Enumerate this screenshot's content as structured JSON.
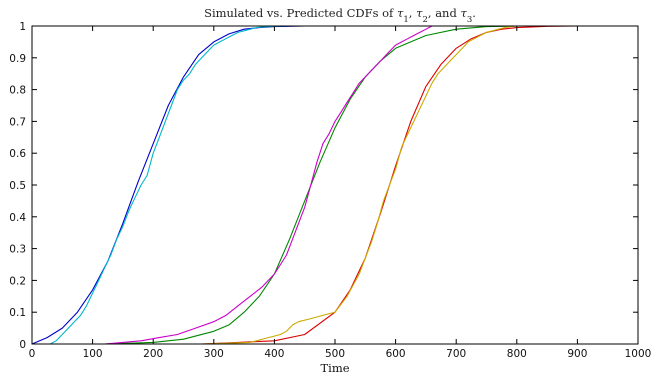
{
  "chart_data": {
    "type": "line",
    "title_parts": [
      {
        "text": "Simulated vs. Predicted CDFs of "
      },
      {
        "text": "τ",
        "italic": true
      },
      {
        "text": "1",
        "sub": true
      },
      {
        "text": ", "
      },
      {
        "text": "τ",
        "italic": true
      },
      {
        "text": "2",
        "sub": true
      },
      {
        "text": ", and "
      },
      {
        "text": "τ",
        "italic": true
      },
      {
        "text": "3",
        "sub": true
      },
      {
        "text": "."
      }
    ],
    "xlabel": "Time",
    "ylabel": "",
    "xlim": [
      0,
      1000
    ],
    "ylim": [
      0,
      1
    ],
    "xticks": [
      "0",
      "100",
      "200",
      "300",
      "400",
      "500",
      "600",
      "700",
      "800",
      "900",
      "1000"
    ],
    "yticks": [
      "0",
      "0.1",
      "0.2",
      "0.3",
      "0.4",
      "0.5",
      "0.6",
      "0.7",
      "0.8",
      "0.9",
      "1"
    ],
    "grid": false,
    "legend": "none",
    "series": [
      {
        "color": "#0000cc",
        "style": "predicted",
        "x": [
          0,
          25,
          50,
          75,
          100,
          125,
          150,
          175,
          200,
          225,
          250,
          275,
          300,
          325,
          350,
          375,
          400,
          450,
          500,
          600,
          1000
        ],
        "y": [
          0,
          0.02,
          0.05,
          0.1,
          0.17,
          0.26,
          0.38,
          0.51,
          0.63,
          0.75,
          0.84,
          0.91,
          0.95,
          0.975,
          0.99,
          0.995,
          0.998,
          1,
          1,
          1,
          1
        ]
      },
      {
        "color": "#00b8cc",
        "style": "simulated",
        "x": [
          30,
          40,
          50,
          60,
          70,
          80,
          90,
          100,
          110,
          120,
          130,
          140,
          150,
          160,
          170,
          180,
          190,
          200,
          210,
          220,
          230,
          240,
          250,
          260,
          270,
          280,
          290,
          300,
          310,
          320,
          330,
          340,
          350,
          360,
          370,
          380,
          400,
          420,
          460
        ],
        "y": [
          0,
          0.01,
          0.03,
          0.05,
          0.07,
          0.09,
          0.12,
          0.16,
          0.2,
          0.24,
          0.28,
          0.33,
          0.37,
          0.42,
          0.46,
          0.5,
          0.53,
          0.6,
          0.65,
          0.7,
          0.75,
          0.8,
          0.83,
          0.85,
          0.88,
          0.9,
          0.92,
          0.94,
          0.95,
          0.96,
          0.97,
          0.98,
          0.985,
          0.99,
          0.995,
          0.997,
          0.999,
          1,
          1
        ]
      },
      {
        "color": "#008800",
        "style": "predicted",
        "x": [
          120,
          200,
          250,
          300,
          325,
          350,
          375,
          400,
          425,
          450,
          475,
          500,
          525,
          550,
          575,
          600,
          650,
          700,
          750,
          800,
          1000
        ],
        "y": [
          0,
          0.005,
          0.015,
          0.04,
          0.06,
          0.1,
          0.15,
          0.22,
          0.33,
          0.45,
          0.57,
          0.68,
          0.77,
          0.84,
          0.89,
          0.93,
          0.97,
          0.99,
          0.998,
          1,
          1
        ]
      },
      {
        "color": "#cc00cc",
        "style": "simulated",
        "x": [
          120,
          150,
          180,
          210,
          240,
          270,
          300,
          320,
          340,
          360,
          380,
          400,
          410,
          420,
          430,
          440,
          450,
          460,
          470,
          480,
          490,
          500,
          510,
          520,
          530,
          540,
          550,
          560,
          570,
          580,
          590,
          600,
          610,
          620,
          630,
          640,
          650,
          660
        ],
        "y": [
          0,
          0.005,
          0.01,
          0.02,
          0.03,
          0.05,
          0.07,
          0.09,
          0.12,
          0.15,
          0.18,
          0.22,
          0.25,
          0.28,
          0.33,
          0.38,
          0.43,
          0.5,
          0.57,
          0.63,
          0.66,
          0.7,
          0.73,
          0.76,
          0.79,
          0.82,
          0.84,
          0.86,
          0.88,
          0.9,
          0.92,
          0.94,
          0.95,
          0.96,
          0.97,
          0.98,
          0.99,
          1
        ]
      },
      {
        "color": "#dd0000",
        "style": "predicted",
        "x": [
          280,
          400,
          450,
          500,
          525,
          550,
          575,
          600,
          625,
          650,
          675,
          700,
          725,
          750,
          775,
          800,
          850,
          900,
          1000
        ],
        "y": [
          0,
          0.01,
          0.03,
          0.1,
          0.17,
          0.27,
          0.41,
          0.56,
          0.7,
          0.81,
          0.88,
          0.93,
          0.96,
          0.98,
          0.99,
          0.995,
          0.999,
          1,
          1
        ]
      },
      {
        "color": "#ccaa00",
        "style": "simulated",
        "x": [
          280,
          360,
          390,
          410,
          420,
          430,
          440,
          460,
          480,
          500,
          520,
          540,
          550,
          560,
          570,
          580,
          590,
          600,
          610,
          620,
          630,
          640,
          650,
          660,
          670,
          680,
          690,
          700,
          710,
          720,
          730,
          740,
          750,
          760,
          770,
          780,
          790,
          800
        ],
        "y": [
          0,
          0.005,
          0.02,
          0.03,
          0.04,
          0.06,
          0.07,
          0.08,
          0.09,
          0.1,
          0.15,
          0.22,
          0.27,
          0.32,
          0.38,
          0.45,
          0.5,
          0.55,
          0.62,
          0.66,
          0.7,
          0.74,
          0.78,
          0.82,
          0.85,
          0.87,
          0.89,
          0.91,
          0.93,
          0.95,
          0.96,
          0.97,
          0.98,
          0.985,
          0.99,
          0.995,
          0.998,
          1
        ]
      }
    ]
  }
}
